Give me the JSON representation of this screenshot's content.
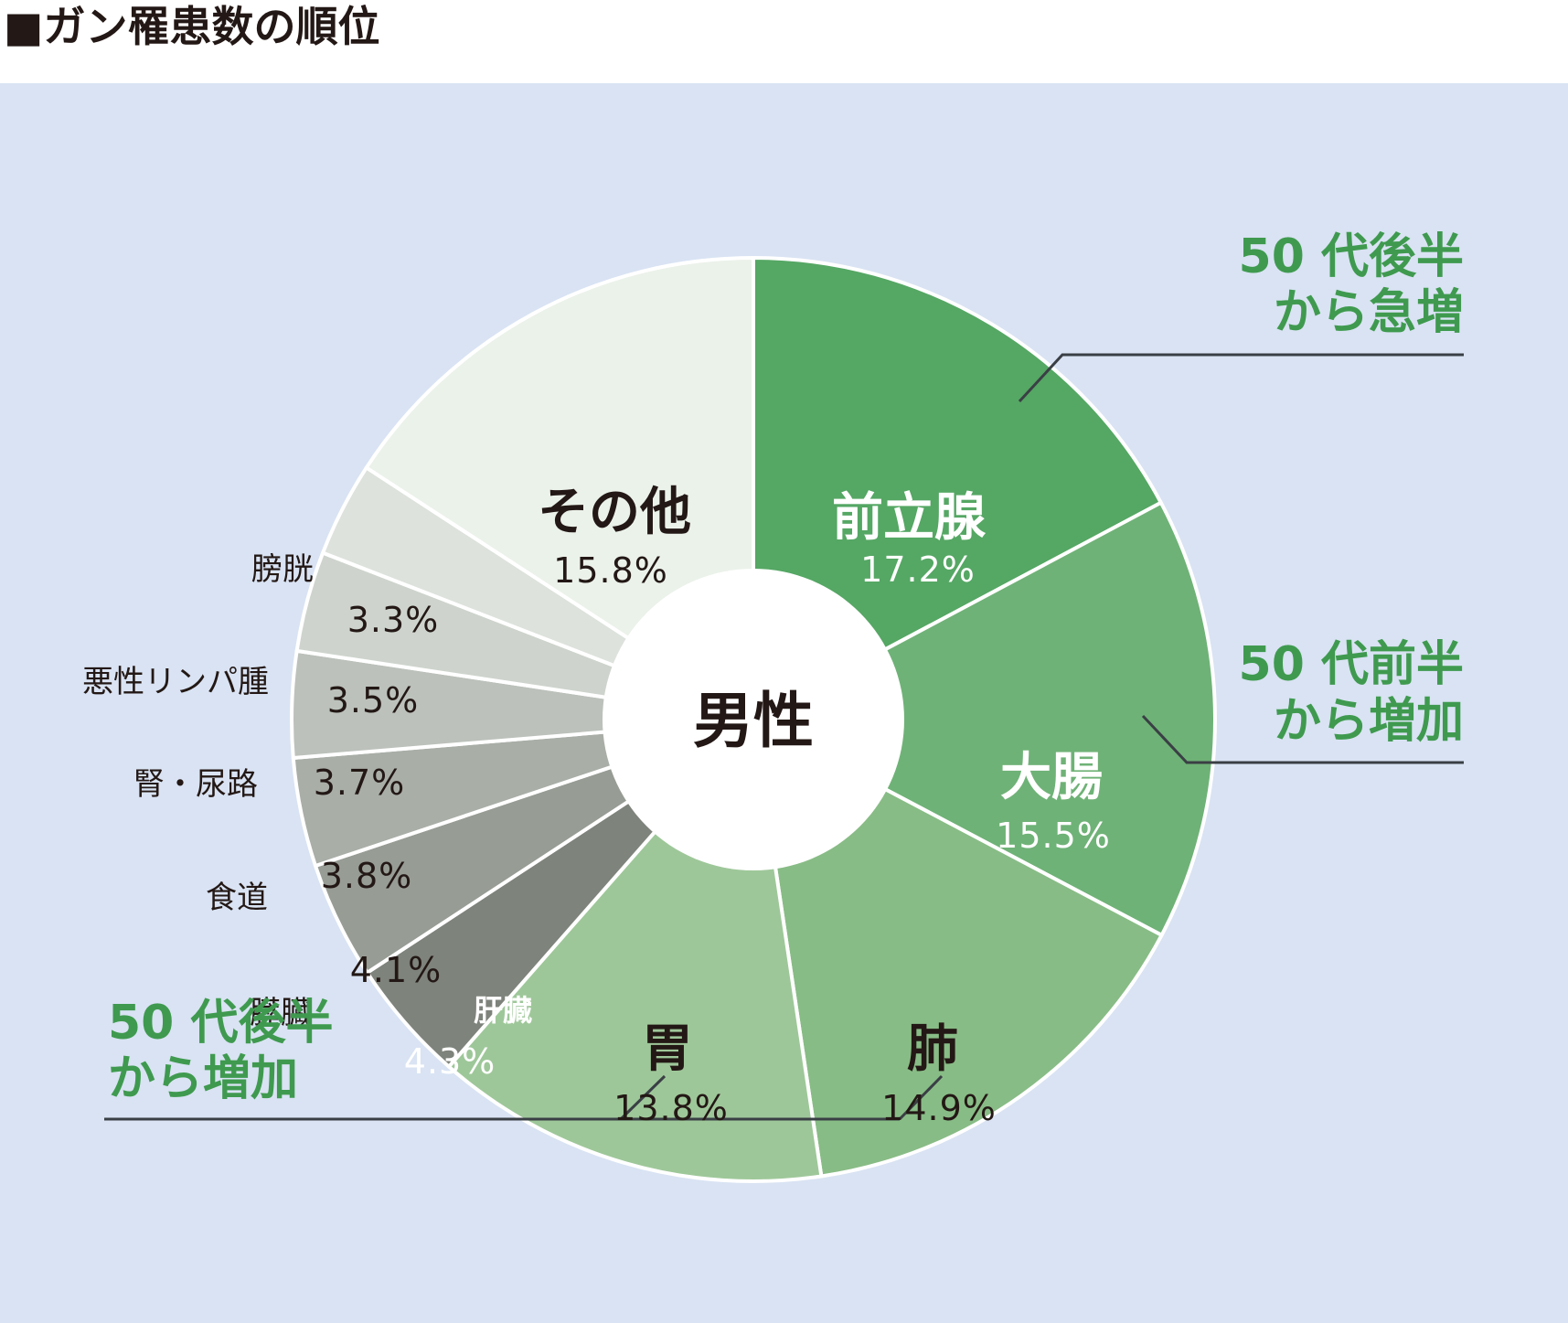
{
  "title": "■ガン罹患数の順位",
  "colors": {
    "background": "#d9e3f3",
    "annotation": "#3f9a4f",
    "leader": "#3a3f45",
    "text": "#231815"
  },
  "chart_data": {
    "type": "pie",
    "title": "■ガン罹患数の順位",
    "center_label": "男性",
    "unit": "%",
    "slices": [
      {
        "name": "前立腺",
        "value": 17.2,
        "label": "17.2%",
        "color": "#55a764"
      },
      {
        "name": "大腸",
        "value": 15.5,
        "label": "15.5%",
        "color": "#6fb277"
      },
      {
        "name": "肺",
        "value": 14.9,
        "label": "14.9%",
        "color": "#88bc86"
      },
      {
        "name": "胃",
        "value": 13.8,
        "label": "13.8%",
        "color": "#9ec799"
      },
      {
        "name": "肝臓",
        "value": 4.3,
        "label": "4.3%",
        "color": "#7e837b"
      },
      {
        "name": "膵臓",
        "value": 4.1,
        "label": "4.1%",
        "color": "#979c94"
      },
      {
        "name": "食道",
        "value": 3.8,
        "label": "3.8%",
        "color": "#a9aea7"
      },
      {
        "name": "腎・尿路",
        "value": 3.7,
        "label": "3.7%",
        "color": "#bcc1bb"
      },
      {
        "name": "悪性リンパ腫",
        "value": 3.5,
        "label": "3.5%",
        "color": "#ced4cd"
      },
      {
        "name": "膀胱",
        "value": 3.3,
        "label": "3.3%",
        "color": "#dde2dc"
      },
      {
        "name": "その他",
        "value": 15.8,
        "label": "15.8%",
        "color": "#ebf2ea"
      }
    ],
    "annotations": [
      {
        "line1": "50 代後半",
        "line2": "から急増",
        "target": "前立腺"
      },
      {
        "line1": "50 代前半",
        "line2": "から増加",
        "target": "大腸"
      },
      {
        "line1": "50 代後半",
        "line2": "から増加",
        "target": "胃・肺"
      }
    ]
  }
}
